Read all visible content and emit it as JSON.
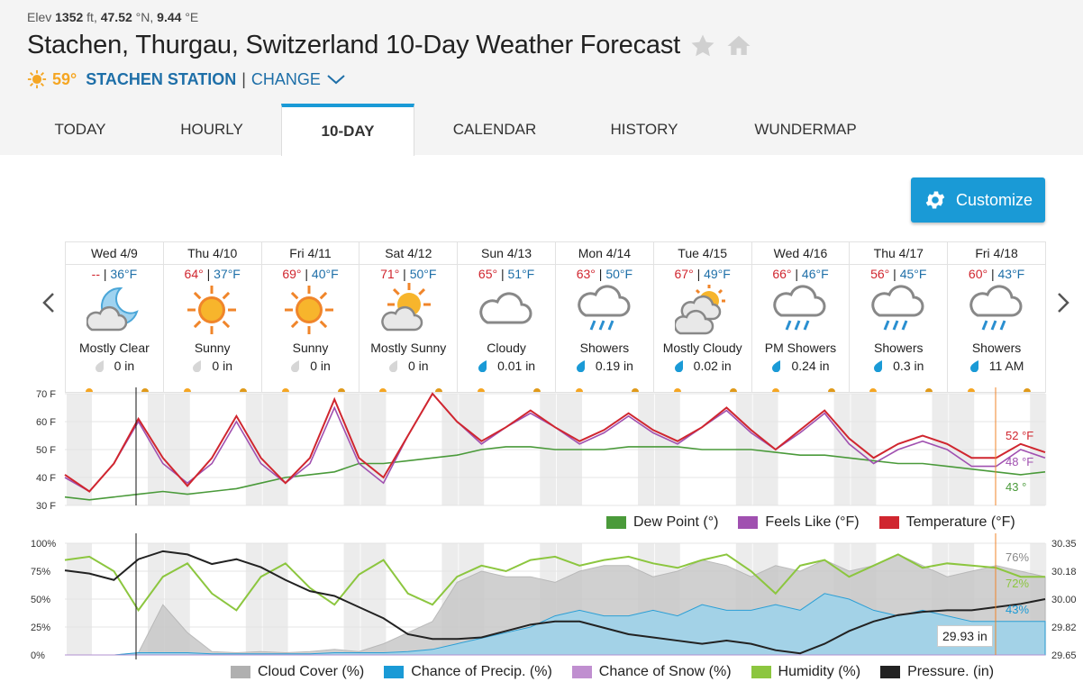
{
  "header": {
    "elev_label": "Elev",
    "elev_value": "1352",
    "elev_unit": "ft,",
    "lat": "47.52",
    "lat_unit": "°N,",
    "lon": "9.44",
    "lon_unit": "°E",
    "title": "Stachen, Thurgau, Switzerland 10-Day Weather Forecast",
    "current_temp": "59°",
    "station": "STACHEN STATION",
    "separator": "|",
    "change": "CHANGE"
  },
  "tabs": [
    {
      "label": "TODAY",
      "active": false
    },
    {
      "label": "HOURLY",
      "active": false
    },
    {
      "label": "10-DAY",
      "active": true
    },
    {
      "label": "CALENDAR",
      "active": false
    },
    {
      "label": "HISTORY",
      "active": false
    },
    {
      "label": "WUNDERMAP",
      "active": false
    }
  ],
  "customize_label": "Customize",
  "days": [
    {
      "name": "Wed 4/9",
      "hi": "--",
      "lo": "36°F",
      "icon": "moon-cloud-icon",
      "cond": "Mostly Clear",
      "precip": "0 in",
      "drop": "dry"
    },
    {
      "name": "Thu 4/10",
      "hi": "64°",
      "lo": "37°F",
      "icon": "sun-icon",
      "cond": "Sunny",
      "precip": "0 in",
      "drop": "dry"
    },
    {
      "name": "Fri 4/11",
      "hi": "69°",
      "lo": "40°F",
      "icon": "sun-icon",
      "cond": "Sunny",
      "precip": "0 in",
      "drop": "dry"
    },
    {
      "name": "Sat 4/12",
      "hi": "71°",
      "lo": "50°F",
      "icon": "sun-cloud-icon",
      "cond": "Mostly Sunny",
      "precip": "0 in",
      "drop": "dry"
    },
    {
      "name": "Sun 4/13",
      "hi": "65°",
      "lo": "51°F",
      "icon": "cloud-icon",
      "cond": "Cloudy",
      "precip": "0.01 in",
      "drop": "wet"
    },
    {
      "name": "Mon 4/14",
      "hi": "63°",
      "lo": "50°F",
      "icon": "rain-icon",
      "cond": "Showers",
      "precip": "0.19 in",
      "drop": "wet"
    },
    {
      "name": "Tue 4/15",
      "hi": "67°",
      "lo": "49°F",
      "icon": "sun-clouds-icon",
      "cond": "Mostly Cloudy",
      "precip": "0.02 in",
      "drop": "wet"
    },
    {
      "name": "Wed 4/16",
      "hi": "66°",
      "lo": "46°F",
      "icon": "rain-icon",
      "cond": "PM Showers",
      "precip": "0.24 in",
      "drop": "wet"
    },
    {
      "name": "Thu 4/17",
      "hi": "56°",
      "lo": "45°F",
      "icon": "rain-icon",
      "cond": "Showers",
      "precip": "0.3 in",
      "drop": "wet"
    },
    {
      "name": "Fri 4/18",
      "hi": "60°",
      "lo": "43°F",
      "icon": "rain-icon",
      "cond": "Showers",
      "precip": "11 AM",
      "drop": "wet"
    }
  ],
  "hi_lo_sep": " | ",
  "colors": {
    "accent": "#1a9ad6",
    "temperature": "#d0262f",
    "feels_like": "#a050b0",
    "dew_point": "#4a9a3a",
    "cloud": "#b0b0b0",
    "precip": "#1a9ad6",
    "snow": "#c08fd0",
    "humidity": "#8cc63f",
    "pressure": "#222222"
  },
  "chart_data": [
    {
      "type": "line",
      "y_ticks": [
        "70 F",
        "60 F",
        "50 F",
        "40 F",
        "30 F"
      ],
      "ylim": [
        30,
        70
      ],
      "series": [
        {
          "name": "Dew Point (°)",
          "values": [
            33,
            32,
            33,
            34,
            35,
            34,
            35,
            36,
            38,
            40,
            41,
            42,
            45,
            45,
            46,
            47,
            48,
            50,
            51,
            51,
            50,
            50,
            50,
            51,
            51,
            51,
            50,
            50,
            50,
            49,
            48,
            48,
            47,
            46,
            45,
            45,
            44,
            43,
            42,
            41,
            42
          ]
        },
        {
          "name": "Feels Like (°F)",
          "values": [
            40,
            35,
            45,
            60,
            45,
            38,
            45,
            60,
            45,
            38,
            45,
            65,
            45,
            38,
            55,
            70,
            60,
            52,
            58,
            63,
            58,
            52,
            56,
            62,
            56,
            52,
            58,
            64,
            56,
            50,
            56,
            63,
            52,
            45,
            50,
            53,
            50,
            44,
            44,
            50,
            47
          ]
        },
        {
          "name": "Temperature (°F)",
          "values": [
            41,
            35,
            45,
            61,
            47,
            37,
            47,
            62,
            47,
            38,
            47,
            68,
            47,
            40,
            55,
            70,
            60,
            53,
            58,
            64,
            58,
            53,
            57,
            63,
            57,
            53,
            58,
            65,
            57,
            50,
            57,
            64,
            54,
            47,
            52,
            55,
            52,
            47,
            47,
            52,
            49
          ]
        }
      ],
      "end_labels": [
        "52 °F",
        "48 °F",
        "43 °"
      ]
    },
    {
      "type": "area",
      "y_ticks_left": [
        "100%",
        "75%",
        "50%",
        "25%",
        "0%"
      ],
      "y_ticks_right": [
        "30.35",
        "30.18",
        "30.00",
        "29.82",
        "29.65"
      ],
      "ylim": [
        0,
        100
      ],
      "series": [
        {
          "name": "Cloud Cover (%)",
          "values": [
            0,
            0,
            0,
            2,
            45,
            20,
            3,
            2,
            3,
            2,
            3,
            5,
            3,
            10,
            20,
            30,
            65,
            75,
            70,
            70,
            65,
            75,
            80,
            80,
            70,
            75,
            85,
            80,
            70,
            80,
            75,
            85,
            75,
            80,
            90,
            80,
            70,
            75,
            80,
            75,
            70
          ]
        },
        {
          "name": "Chance of Precip. (%)",
          "values": [
            0,
            0,
            0,
            2,
            2,
            2,
            1,
            1,
            1,
            1,
            1,
            2,
            2,
            2,
            3,
            5,
            10,
            15,
            20,
            25,
            35,
            40,
            35,
            35,
            40,
            35,
            45,
            40,
            40,
            45,
            40,
            55,
            50,
            40,
            35,
            40,
            35,
            30,
            30,
            30,
            30
          ]
        },
        {
          "name": "Chance of Snow (%)",
          "values": [
            0,
            0,
            0,
            0,
            0,
            0,
            0,
            0,
            0,
            0,
            0,
            0,
            0,
            0,
            0,
            0,
            0,
            0,
            0,
            0,
            0,
            0,
            0,
            0,
            0,
            0,
            0,
            0,
            0,
            0,
            0,
            0,
            0,
            0,
            0,
            0,
            0,
            0,
            0,
            0,
            0
          ]
        },
        {
          "name": "Humidity (%)",
          "values": [
            85,
            88,
            75,
            40,
            70,
            82,
            55,
            40,
            70,
            82,
            60,
            45,
            72,
            85,
            55,
            45,
            70,
            80,
            75,
            85,
            88,
            80,
            85,
            88,
            82,
            78,
            85,
            90,
            75,
            55,
            80,
            85,
            70,
            80,
            90,
            78,
            82,
            80,
            78,
            70,
            70
          ]
        },
        {
          "name": "Pressure. (in)",
          "values": [
            30.18,
            30.16,
            30.12,
            30.25,
            30.3,
            30.28,
            30.22,
            30.25,
            30.2,
            30.12,
            30.05,
            30.02,
            29.95,
            29.88,
            29.78,
            29.75,
            29.75,
            29.76,
            29.8,
            29.84,
            29.86,
            29.86,
            29.82,
            29.78,
            29.76,
            29.74,
            29.72,
            29.74,
            29.72,
            29.68,
            29.66,
            29.72,
            29.8,
            29.86,
            29.9,
            29.92,
            29.93,
            29.93,
            29.95,
            29.97,
            30.0
          ]
        }
      ],
      "end_labels": [
        "76%",
        "72%",
        "43%"
      ],
      "tooltip": "29.93 in"
    }
  ],
  "legend1": [
    "Dew Point (°)",
    "Feels Like (°F)",
    "Temperature (°F)"
  ],
  "legend2": [
    "Cloud Cover (%)",
    "Chance of Precip. (%)",
    "Chance of Snow (%)",
    "Humidity (%)",
    "Pressure. (in)"
  ]
}
